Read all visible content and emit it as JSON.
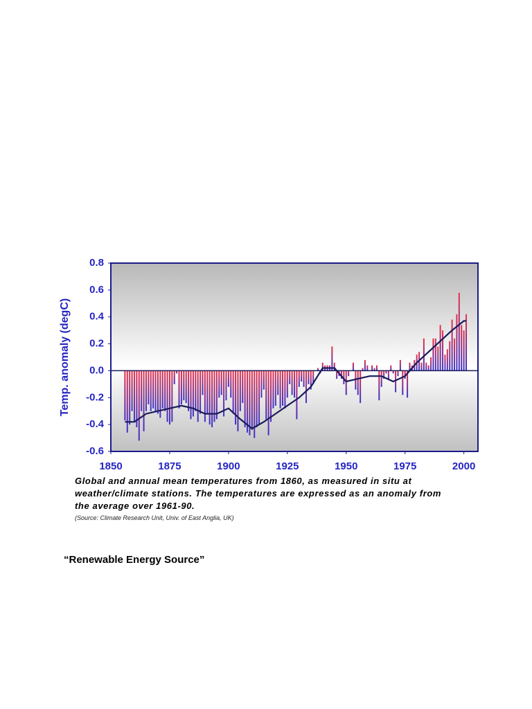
{
  "chart_data": {
    "type": "bar_line",
    "y_label": "Temp. anomaly (degC)",
    "xlim": [
      1850,
      2006
    ],
    "xticks": [
      1850,
      1875,
      1900,
      1925,
      1950,
      1975,
      2000
    ],
    "ylim": [
      -0.6,
      0.8
    ],
    "yticks": [
      0.8,
      0.6,
      0.4,
      0.2,
      {
        "value": 0,
        "label": "0.0"
      },
      -0.2,
      -0.4,
      -0.6
    ],
    "bar_colors": [
      "#e8324a",
      "#3a32c8"
    ],
    "axis_color": "#1a1a8a",
    "tick_color": "#2424c4",
    "bars": {
      "x": [
        1856,
        1857,
        1858,
        1859,
        1860,
        1861,
        1862,
        1863,
        1864,
        1865,
        1866,
        1867,
        1868,
        1869,
        1870,
        1871,
        1872,
        1873,
        1874,
        1875,
        1876,
        1877,
        1878,
        1879,
        1880,
        1881,
        1882,
        1883,
        1884,
        1885,
        1886,
        1887,
        1888,
        1889,
        1890,
        1891,
        1892,
        1893,
        1894,
        1895,
        1896,
        1897,
        1898,
        1899,
        1900,
        1901,
        1902,
        1903,
        1904,
        1905,
        1906,
        1907,
        1908,
        1909,
        1910,
        1911,
        1912,
        1913,
        1914,
        1915,
        1916,
        1917,
        1918,
        1919,
        1920,
        1921,
        1922,
        1923,
        1924,
        1925,
        1926,
        1927,
        1928,
        1929,
        1930,
        1931,
        1932,
        1933,
        1934,
        1935,
        1936,
        1937,
        1938,
        1939,
        1940,
        1941,
        1942,
        1943,
        1944,
        1945,
        1946,
        1947,
        1948,
        1949,
        1950,
        1951,
        1952,
        1953,
        1954,
        1955,
        1956,
        1957,
        1958,
        1959,
        1960,
        1961,
        1962,
        1963,
        1964,
        1965,
        1966,
        1967,
        1968,
        1969,
        1970,
        1971,
        1972,
        1973,
        1974,
        1975,
        1976,
        1977,
        1978,
        1979,
        1980,
        1981,
        1982,
        1983,
        1984,
        1985,
        1986,
        1987,
        1988,
        1989,
        1990,
        1991,
        1992,
        1993,
        1994,
        1995,
        1996,
        1997,
        1998,
        1999,
        2000,
        2001
      ],
      "values": [
        -0.37,
        -0.46,
        -0.4,
        -0.3,
        -0.38,
        -0.42,
        -0.52,
        -0.3,
        -0.45,
        -0.3,
        -0.25,
        -0.3,
        -0.28,
        -0.3,
        -0.32,
        -0.35,
        -0.28,
        -0.3,
        -0.38,
        -0.4,
        -0.38,
        -0.1,
        -0.02,
        -0.28,
        -0.25,
        -0.22,
        -0.24,
        -0.3,
        -0.36,
        -0.34,
        -0.3,
        -0.38,
        -0.32,
        -0.18,
        -0.38,
        -0.32,
        -0.4,
        -0.42,
        -0.38,
        -0.36,
        -0.2,
        -0.18,
        -0.34,
        -0.22,
        -0.12,
        -0.2,
        -0.32,
        -0.4,
        -0.45,
        -0.3,
        -0.24,
        -0.42,
        -0.46,
        -0.48,
        -0.44,
        -0.5,
        -0.42,
        -0.4,
        -0.2,
        -0.14,
        -0.36,
        -0.48,
        -0.38,
        -0.28,
        -0.26,
        -0.18,
        -0.28,
        -0.26,
        -0.28,
        -0.2,
        -0.1,
        -0.18,
        -0.2,
        -0.36,
        -0.12,
        -0.08,
        -0.12,
        -0.24,
        -0.1,
        -0.14,
        -0.1,
        0,
        0.02,
        -0.02,
        0.06,
        0.04,
        0.04,
        0.04,
        0.18,
        0.06,
        -0.06,
        -0.04,
        -0.06,
        -0.1,
        -0.18,
        -0.04,
        0,
        0.06,
        -0.14,
        -0.18,
        -0.24,
        0.02,
        0.08,
        0.04,
        0,
        0.04,
        0.02,
        0.04,
        -0.22,
        -0.12,
        -0.06,
        -0.02,
        -0.06,
        0.04,
        -0.02,
        -0.16,
        -0.04,
        0.08,
        -0.18,
        -0.06,
        -0.2,
        0.06,
        0.04,
        0.08,
        0.12,
        0.14,
        0.06,
        0.24,
        0.06,
        0.04,
        0.1,
        0.24,
        0.24,
        0.18,
        0.34,
        0.3,
        0.12,
        0.16,
        0.22,
        0.38,
        0.24,
        0.42,
        0.58,
        0.34,
        0.3,
        0.42
      ]
    },
    "smooth": {
      "color": "#1a1a5a",
      "x": [
        1856,
        1860,
        1865,
        1870,
        1875,
        1880,
        1885,
        1890,
        1895,
        1900,
        1905,
        1910,
        1915,
        1920,
        1925,
        1930,
        1935,
        1940,
        1945,
        1950,
        1955,
        1960,
        1965,
        1970,
        1975,
        1980,
        1985,
        1990,
        1995,
        2000,
        2001
      ],
      "values": [
        -0.38,
        -0.38,
        -0.32,
        -0.3,
        -0.28,
        -0.26,
        -0.28,
        -0.32,
        -0.32,
        -0.28,
        -0.36,
        -0.43,
        -0.38,
        -0.32,
        -0.26,
        -0.2,
        -0.12,
        0.02,
        0.02,
        -0.08,
        -0.06,
        -0.04,
        -0.04,
        -0.08,
        -0.04,
        0.06,
        0.14,
        0.22,
        0.3,
        0.37,
        0.37
      ]
    }
  },
  "caption": [
    "Global and annual mean temperatures from 1860, as measured in situ at",
    "weather/climate stations. The temperatures are expressed as an anomaly from",
    "the average over 1961-90."
  ],
  "source": "(Source: Climate Research Unit, Univ. of East Anglia, UK)",
  "heading": "“Renewable Energy Source”"
}
